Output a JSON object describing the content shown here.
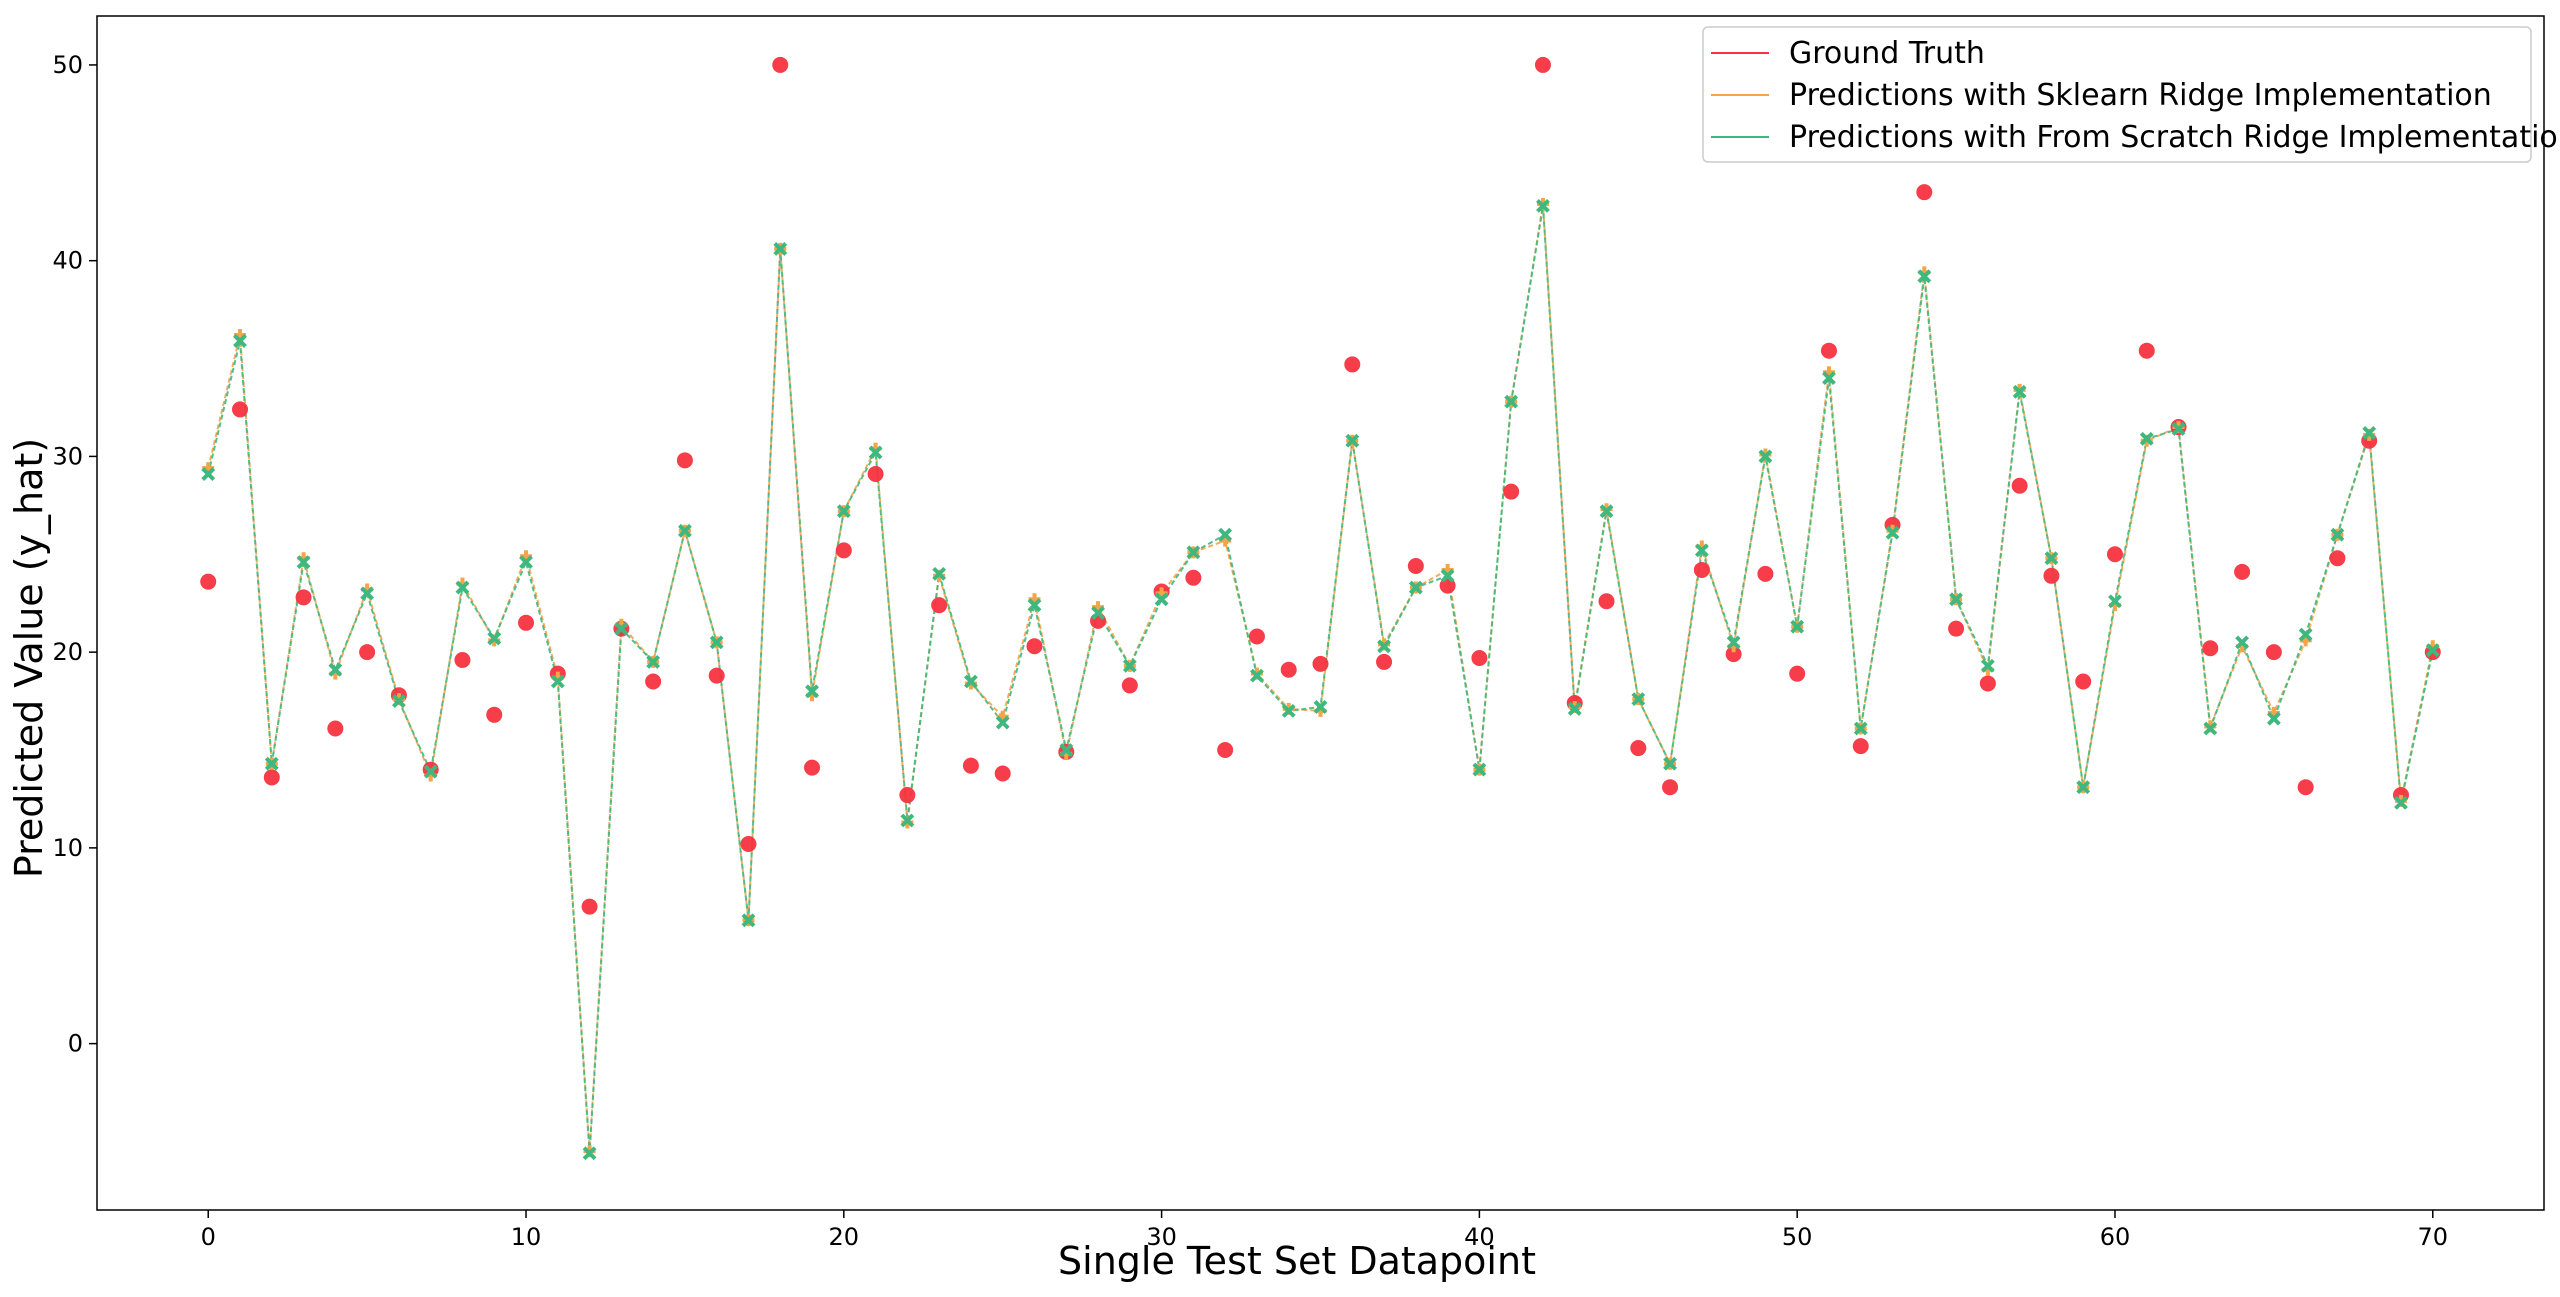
{
  "colors": {
    "ground_truth": "#f5333f",
    "sklearn": "#f7a347",
    "scratch": "#3fb87f",
    "axes": "#000000",
    "legend_border": "#cccccc"
  },
  "chart_data": {
    "type": "line",
    "xlabel": "Single Test Set Datapoint",
    "ylabel": "Predicted Value (y_hat)",
    "xlim": [
      -3.5,
      73.5
    ],
    "ylim": [
      -8.5,
      52.5
    ],
    "xticks": [
      0,
      10,
      20,
      30,
      40,
      50,
      60,
      70
    ],
    "yticks": [
      0,
      10,
      20,
      30,
      40,
      50
    ],
    "grid": false,
    "legend_position": "top-right",
    "x": [
      0,
      1,
      2,
      3,
      4,
      5,
      6,
      7,
      8,
      9,
      10,
      11,
      12,
      13,
      14,
      15,
      16,
      17,
      18,
      19,
      20,
      21,
      22,
      23,
      24,
      25,
      26,
      27,
      28,
      29,
      30,
      31,
      32,
      33,
      34,
      35,
      36,
      37,
      38,
      39,
      40,
      41,
      42,
      43,
      44,
      45,
      46,
      47,
      48,
      49,
      50,
      51,
      52,
      53,
      54,
      55,
      56,
      57,
      58,
      59,
      60,
      61,
      62,
      63,
      64,
      65,
      66,
      67,
      68,
      69,
      70
    ],
    "series": [
      {
        "name": "Ground Truth",
        "style": "points",
        "values": [
          23.6,
          32.4,
          13.6,
          22.8,
          16.1,
          20.0,
          17.8,
          14.0,
          19.6,
          16.8,
          21.5,
          18.9,
          7.0,
          21.2,
          18.5,
          29.8,
          18.8,
          10.2,
          50.0,
          14.1,
          25.2,
          29.1,
          12.7,
          22.4,
          14.2,
          13.8,
          20.3,
          14.9,
          21.6,
          18.3,
          23.1,
          23.8,
          15.0,
          20.8,
          19.1,
          19.4,
          34.7,
          19.5,
          24.4,
          23.4,
          19.7,
          28.2,
          50.0,
          17.4,
          22.6,
          15.1,
          13.1,
          24.2,
          19.9,
          24.0,
          18.9,
          35.4,
          15.2,
          26.5,
          43.5,
          21.2,
          18.4,
          28.5,
          23.9,
          18.5,
          25.0,
          35.4,
          31.5,
          20.2,
          24.1,
          20.0,
          13.1,
          24.8,
          30.8,
          12.7,
          20.0
        ]
      },
      {
        "name": "Predictions with Sklearn Ridge Implementation",
        "style": "line+plus",
        "values": [
          29.4,
          36.2,
          14.3,
          24.8,
          18.9,
          23.2,
          17.6,
          13.7,
          23.5,
          20.6,
          24.9,
          18.7,
          -5.5,
          21.4,
          19.5,
          26.2,
          20.5,
          6.3,
          40.6,
          17.8,
          27.2,
          30.4,
          11.3,
          23.9,
          18.4,
          16.7,
          22.7,
          14.8,
          22.3,
          19.3,
          23.0,
          25.1,
          25.7,
          18.9,
          17.1,
          17.0,
          30.8,
          20.4,
          23.3,
          24.2,
          14.0,
          32.8,
          42.9,
          17.2,
          27.3,
          17.6,
          14.3,
          25.4,
          20.3,
          30.1,
          21.3,
          34.3,
          16.1,
          26.2,
          39.4,
          22.7,
          19.1,
          33.4,
          24.8,
          13.1,
          22.4,
          30.8,
          31.5,
          16.2,
          20.3,
          16.9,
          20.6,
          26.0,
          31.1,
          12.4,
          20.3
        ]
      },
      {
        "name": "Predictions with From Scratch Ridge Implementation",
        "style": "line+x",
        "values": [
          29.1,
          35.9,
          14.3,
          24.6,
          19.1,
          23.0,
          17.5,
          13.9,
          23.3,
          20.7,
          24.6,
          18.5,
          -5.6,
          21.2,
          19.5,
          26.2,
          20.5,
          6.3,
          40.6,
          18.0,
          27.2,
          30.2,
          11.4,
          24.0,
          18.5,
          16.4,
          22.4,
          15.0,
          22.0,
          19.3,
          22.7,
          25.1,
          26.0,
          18.8,
          17.0,
          17.2,
          30.8,
          20.3,
          23.3,
          23.9,
          14.0,
          32.8,
          42.8,
          17.1,
          27.2,
          17.6,
          14.3,
          25.2,
          20.5,
          30.0,
          21.3,
          34.0,
          16.1,
          26.1,
          39.2,
          22.7,
          19.3,
          33.3,
          24.8,
          13.1,
          22.6,
          30.9,
          31.4,
          16.1,
          20.5,
          16.6,
          20.9,
          26.0,
          31.2,
          12.3,
          20.1
        ]
      }
    ]
  }
}
